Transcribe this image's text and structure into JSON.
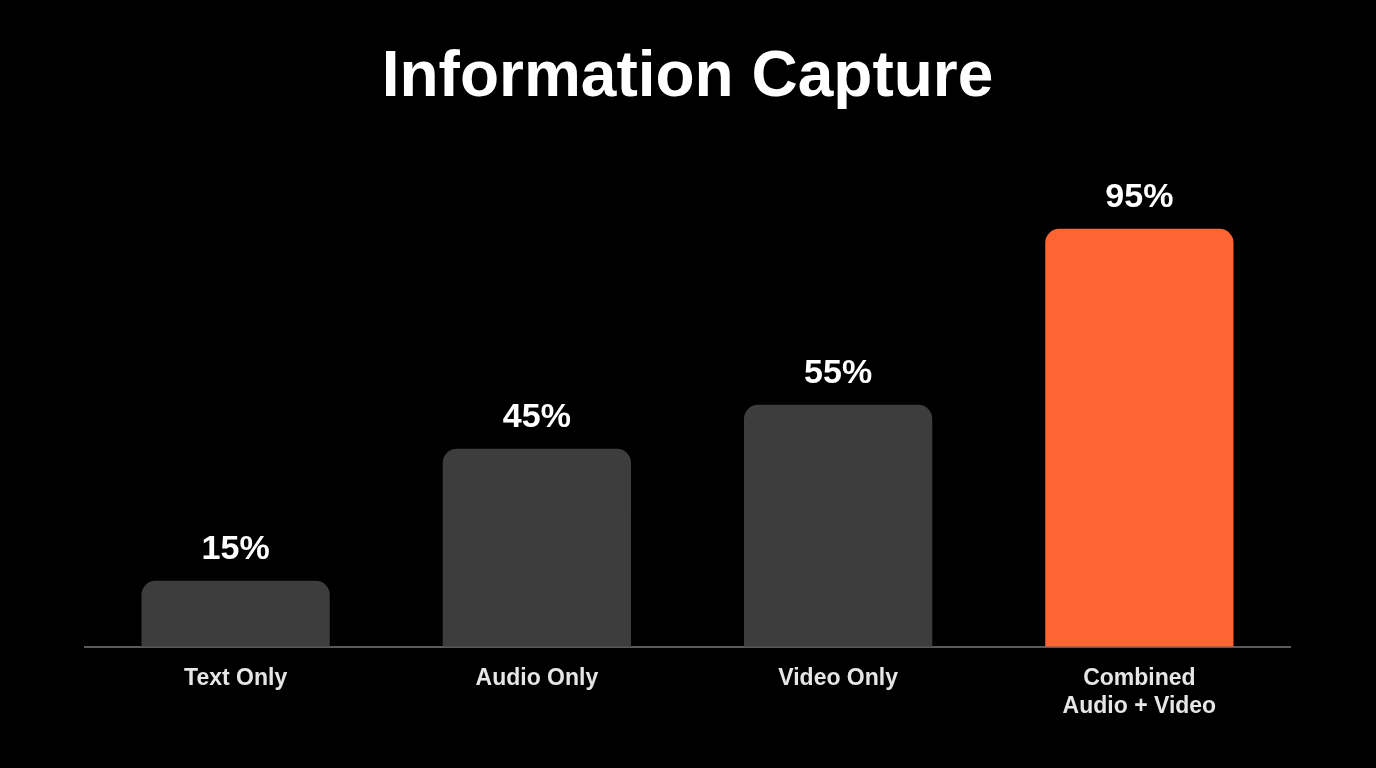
{
  "chart_data": {
    "type": "bar",
    "title": "Information Capture",
    "categories": [
      "Text Only",
      "Audio Only",
      "Video Only",
      "Combined\nAudio + Video"
    ],
    "values": [
      15,
      45,
      55,
      95
    ],
    "colors": [
      "#3d3d3d",
      "#3d3d3d",
      "#3d3d3d",
      "#ff6433"
    ],
    "value_labels": [
      "15%",
      "45%",
      "55%",
      "95%"
    ]
  }
}
